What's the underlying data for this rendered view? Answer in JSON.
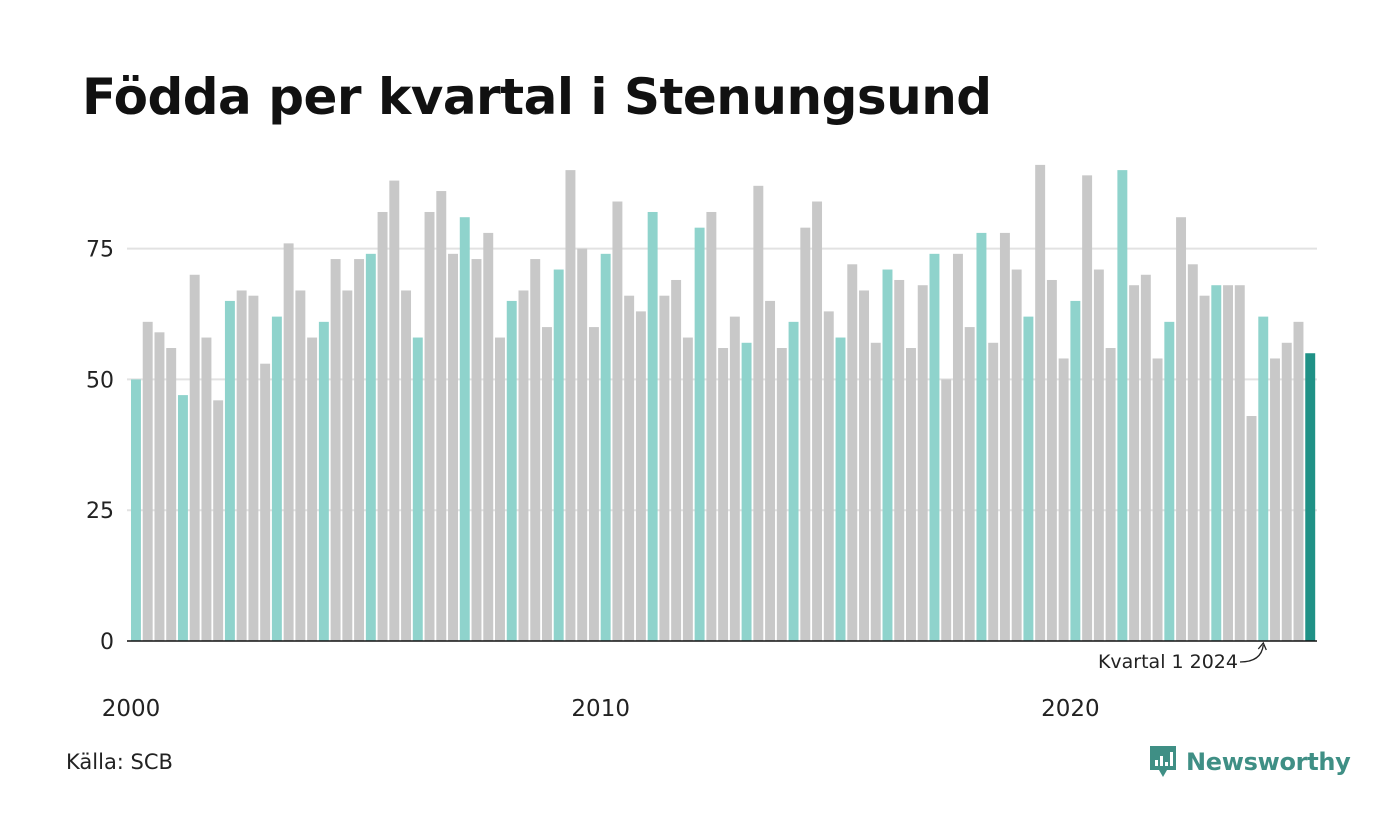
{
  "colors": {
    "q1": "#8fd3cc",
    "other": "#c8c8c8",
    "latest": "#1f9186",
    "grid": "#e2e2e2",
    "axis": "#111111",
    "brand": "#3f8f85"
  },
  "source": "Källa: SCB",
  "brand": {
    "name": "Newsworthy",
    "icon": "newsworthy-logo-icon"
  },
  "chart_data": {
    "type": "bar",
    "title": "Födda per kvartal i Stenungsund",
    "xlabel": "",
    "ylabel": "",
    "ylim": [
      0,
      95
    ],
    "yticks": [
      0,
      25,
      50,
      75
    ],
    "xtick_labels": [
      "2000",
      "2010",
      "2020"
    ],
    "grid": true,
    "start_year": 2000,
    "quarters_per_year": 4,
    "annotation": {
      "text": "Kvartal 1 2024",
      "target_year": 2024,
      "target_quarter": 1
    },
    "values": [
      50,
      61,
      59,
      56,
      47,
      70,
      58,
      46,
      65,
      67,
      66,
      53,
      62,
      76,
      67,
      58,
      61,
      73,
      67,
      73,
      74,
      82,
      88,
      67,
      58,
      82,
      86,
      74,
      81,
      73,
      78,
      58,
      65,
      67,
      73,
      60,
      71,
      90,
      75,
      60,
      74,
      84,
      66,
      63,
      82,
      66,
      69,
      58,
      79,
      82,
      56,
      62,
      57,
      87,
      65,
      56,
      61,
      79,
      84,
      63,
      58,
      72,
      67,
      57,
      71,
      69,
      56,
      68,
      74,
      50,
      74,
      60,
      78,
      57,
      78,
      71,
      62,
      91,
      69,
      54,
      65,
      89,
      71,
      56,
      90,
      68,
      70,
      54,
      61,
      81,
      72,
      66,
      68,
      68,
      68,
      43,
      62,
      54,
      57,
      61,
      55
    ]
  }
}
